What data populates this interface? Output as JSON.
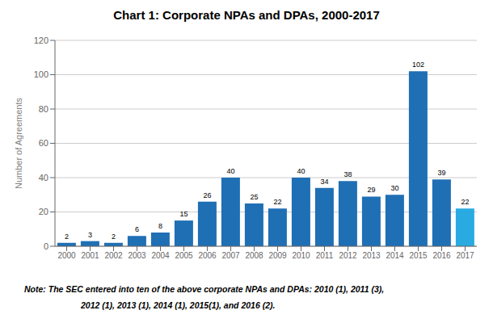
{
  "chart_data": {
    "type": "bar",
    "title": "Chart 1: Corporate NPAs and DPAs, 2000-2017",
    "categories": [
      "2000",
      "2001",
      "2002",
      "2003",
      "2004",
      "2005",
      "2006",
      "2007",
      "2008",
      "2009",
      "2010",
      "2011",
      "2012",
      "2013",
      "2014",
      "2015",
      "2016",
      "2017"
    ],
    "values": [
      2,
      3,
      2,
      6,
      8,
      15,
      26,
      40,
      25,
      22,
      40,
      34,
      38,
      29,
      30,
      102,
      39,
      22
    ],
    "colors": [
      "#1F6FB5",
      "#1F6FB5",
      "#1F6FB5",
      "#1F6FB5",
      "#1F6FB5",
      "#1F6FB5",
      "#1F6FB5",
      "#1F6FB5",
      "#1F6FB5",
      "#1F6FB5",
      "#1F6FB5",
      "#1F6FB5",
      "#1F6FB5",
      "#1F6FB5",
      "#1F6FB5",
      "#1F6FB5",
      "#1F6FB5",
      "#29ABE2"
    ],
    "y_label": "Number of Agreements",
    "ylim": [
      0,
      120
    ],
    "yticks": [
      0,
      20,
      40,
      60,
      80,
      100,
      120
    ],
    "grid": true,
    "data_labels": true,
    "annotations": [
      "Note: The SEC entered into ten of the above corporate NPAs and DPAs: 2010 (1), 2011 (3),",
      "2012 (1), 2013 (1), 2014 (1), 2015(1), and 2016 (2)."
    ]
  }
}
